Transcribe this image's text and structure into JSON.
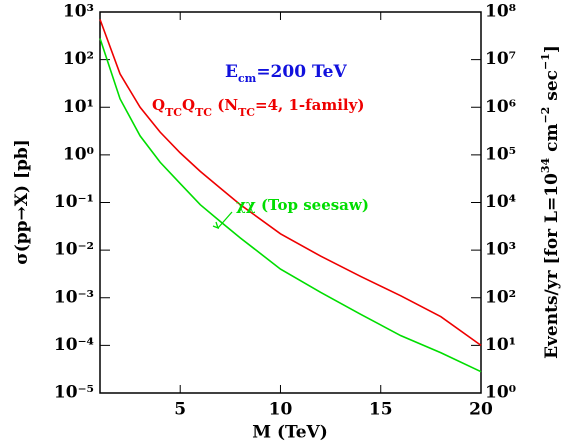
{
  "chart_data": {
    "type": "line",
    "xlabel": "M (TeV)",
    "ylabel": [
      {
        "t": "σ(pp→X) [pb]"
      }
    ],
    "y2label": [
      {
        "t": "Events/yr [for L=10"
      },
      {
        "t": "34",
        "sup": true
      },
      {
        "t": " cm"
      },
      {
        "t": "−2",
        "sup": true
      },
      {
        "t": " sec"
      },
      {
        "t": "−1",
        "sup": true
      },
      {
        "t": "]"
      }
    ],
    "xlim": [
      1,
      20
    ],
    "xticks": [
      5,
      10,
      15,
      20
    ],
    "ylim": [
      1e-05,
      1000
    ],
    "ylog": true,
    "yticks": [
      {
        "value": 1e-05,
        "label": "10⁻⁵"
      },
      {
        "value": 0.0001,
        "label": "10⁻⁴"
      },
      {
        "value": 0.001,
        "label": "10⁻³"
      },
      {
        "value": 0.01,
        "label": "10⁻²"
      },
      {
        "value": 0.1,
        "label": "10⁻¹"
      },
      {
        "value": 1,
        "label": "10⁰"
      },
      {
        "value": 10,
        "label": "10¹"
      },
      {
        "value": 100,
        "label": "10²"
      },
      {
        "value": 1000,
        "label": "10³"
      }
    ],
    "y2lim": [
      1,
      100000000
    ],
    "y2ticks": [
      {
        "value": 1,
        "label": "10⁰"
      },
      {
        "value": 10,
        "label": "10¹"
      },
      {
        "value": 100,
        "label": "10²"
      },
      {
        "value": 1000,
        "label": "10³"
      },
      {
        "value": 10000,
        "label": "10⁴"
      },
      {
        "value": 100000,
        "label": "10⁵"
      },
      {
        "value": 1000000,
        "label": "10⁶"
      },
      {
        "value": 10000000,
        "label": "10⁷"
      },
      {
        "value": 100000000,
        "label": "10⁸"
      }
    ],
    "x": [
      1,
      2,
      3,
      4,
      5,
      6,
      7,
      8,
      10,
      12,
      14,
      16,
      18,
      20
    ],
    "series": [
      {
        "name": "QTCQTC",
        "color": "#ee0000",
        "values": [
          700,
          50,
          10,
          3,
          1.1,
          0.45,
          0.2,
          0.09,
          0.022,
          0.0075,
          0.0028,
          0.0011,
          0.0004,
          0.0001
        ]
      },
      {
        "name": "χχ",
        "color": "#00dd00",
        "values": [
          280,
          15,
          2.5,
          0.7,
          0.25,
          0.09,
          0.04,
          0.018,
          0.004,
          0.0013,
          0.00045,
          0.00016,
          7e-05,
          2.8e-05
        ]
      }
    ],
    "annotations": [
      {
        "color": "#1111dd",
        "parts": [
          {
            "t": "E"
          },
          {
            "t": "cm",
            "sub": true
          },
          {
            "t": "=200 TeV"
          }
        ]
      },
      {
        "color": "#ee0000",
        "parts": [
          {
            "t": "Q"
          },
          {
            "t": "TC",
            "sub": true
          },
          {
            "t": "Q"
          },
          {
            "t": "TC",
            "sub": true
          },
          {
            "t": " (N"
          },
          {
            "t": "TC",
            "sub": true
          },
          {
            "t": "=4, 1-family)"
          }
        ]
      },
      {
        "color": "#00dd00",
        "parts": [
          {
            "t": "χχ (Top seesaw)"
          }
        ]
      }
    ]
  }
}
